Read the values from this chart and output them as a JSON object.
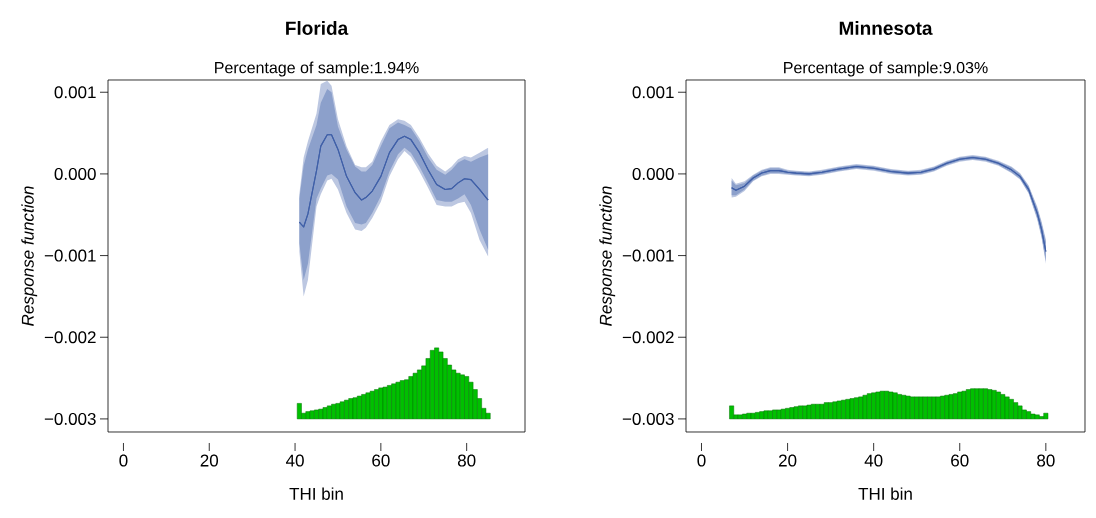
{
  "chart_data": [
    {
      "type": "line",
      "title": "Florida",
      "subtitle": "Percentage of sample:1.94%",
      "xlabel": "THI bin",
      "ylabel": "Response function",
      "xlim": [
        -3.6,
        93.6
      ],
      "ylim": [
        -0.00316,
        0.00115
      ],
      "xticks": [
        0,
        20,
        40,
        60,
        80
      ],
      "yticks": [
        {
          "value": -0.003,
          "label": "−0.003"
        },
        {
          "value": -0.002,
          "label": "−0.002"
        },
        {
          "value": -0.001,
          "label": "−0.001"
        },
        {
          "value": 0,
          "label": "0.000"
        },
        0.001
      ],
      "series": [
        {
          "color": "#4060a8",
          "x": [
            41,
            42,
            43,
            45,
            46,
            47.5,
            48.5,
            50,
            52,
            54,
            55.5,
            56.5,
            58,
            60,
            62,
            64,
            65.5,
            67,
            69,
            71,
            73,
            75,
            76.5,
            78,
            79.5,
            81,
            83,
            85
          ],
          "values": [
            -0.00059,
            -0.00065,
            -0.00049,
            4e-05,
            0.00034,
            0.00048,
            0.00048,
            0.0003,
            -3e-05,
            -0.00023,
            -0.00032,
            -0.00029,
            -0.00021,
            -3e-05,
            0.00026,
            0.00042,
            0.00046,
            0.00042,
            0.00026,
            5e-05,
            -0.00013,
            -0.00019,
            -0.00018,
            -0.00011,
            -6e-05,
            -7e-05,
            -0.00019,
            -0.00032
          ],
          "upper": [
            -0.00025,
            0.0002,
            0.0004,
            0.00074,
            0.0011,
            0.00114,
            0.00108,
            0.00067,
            0.00034,
            0.00011,
            8e-05,
            8e-05,
            0.00015,
            0.0004,
            0.0006,
            0.00067,
            0.00065,
            0.0006,
            0.00044,
            0.00025,
            0.0001,
            3e-05,
            9e-05,
            0.00018,
            0.00022,
            0.0002,
            0.00026,
            0.00032
          ],
          "lower": [
            -0.00095,
            -0.0015,
            -0.0013,
            -0.0004,
            -0.00025,
            -8e-05,
            -6e-05,
            -0.00019,
            -0.00048,
            -0.00068,
            -0.0007,
            -0.00066,
            -0.00054,
            -0.00034,
            -3e-05,
            0.00018,
            0.00028,
            0.00021,
            3e-05,
            -0.00017,
            -0.00038,
            -0.0004,
            -0.0004,
            -0.00036,
            -0.00034,
            -0.00048,
            -0.00081,
            -0.00101
          ]
        },
        {
          "color": "#4060a8",
          "x": [
            41,
            42,
            43,
            45,
            46,
            47.5,
            48.5,
            50,
            52,
            54,
            55.5,
            56.5,
            58,
            60,
            62,
            64,
            65.5,
            67,
            69,
            71,
            73,
            75,
            76.5,
            78,
            79.5,
            81,
            83,
            85
          ],
          "values": [
            -0.00059,
            -0.00065,
            -0.00049,
            4e-05,
            0.00034,
            0.00048,
            0.00048,
            0.0003,
            -3e-05,
            -0.00023,
            -0.00032,
            -0.00029,
            -0.00021,
            -3e-05,
            0.00026,
            0.00042,
            0.00046,
            0.00042,
            0.00026,
            5e-05,
            -0.00013,
            -0.00019,
            -0.00018,
            -0.00011,
            -6e-05,
            -7e-05,
            -0.00019,
            -0.00032
          ],
          "upper": [
            -0.0003,
            0.0001,
            0.0003,
            0.0006,
            0.00087,
            0.00104,
            0.001,
            0.00058,
            0.0003,
            9e-05,
            3e-05,
            3e-05,
            0.00011,
            0.00034,
            0.00056,
            0.00063,
            0.0006,
            0.00056,
            0.0004,
            0.0002,
            5e-05,
            -1e-05,
            5e-05,
            0.00014,
            0.00018,
            0.00015,
            0.0002,
            0.00024
          ],
          "lower": [
            -0.00085,
            -0.0013,
            -0.0011,
            -0.0003,
            -0.00018,
            -2e-05,
            0,
            -7e-05,
            -0.0004,
            -0.0006,
            -0.00062,
            -0.0006,
            -0.00048,
            -0.00027,
            3e-05,
            0.00024,
            0.00032,
            0.00026,
            9e-05,
            -0.00011,
            -0.00032,
            -0.00034,
            -0.00034,
            -0.0003,
            -0.00025,
            -0.00038,
            -0.00068,
            -0.00093
          ]
        },
        {
          "type": "histogram",
          "color": "#00c000",
          "bins": [
            40.5,
            41.5,
            42.5,
            43.5,
            44.5,
            45.5,
            46.5,
            47.5,
            48.5,
            49.5,
            50.5,
            51.5,
            52.5,
            53.5,
            54.5,
            55.5,
            56.5,
            57.5,
            58.5,
            59.5,
            60.5,
            61.5,
            62.5,
            63.5,
            64.5,
            65.5,
            66.5,
            67.5,
            68.5,
            69.5,
            70.5,
            71.5,
            72.5,
            73.5,
            74.5,
            75.5,
            76.5,
            77.5,
            78.5,
            79.5,
            80.5,
            81.5,
            82.5,
            83.5,
            84.5,
            85.5
          ],
          "values": [
            0.00019,
            7e-05,
            9e-05,
            0.0001,
            0.00011,
            0.00012,
            0.00014,
            0.00016,
            0.00018,
            0.00019,
            0.00021,
            0.00023,
            0.00025,
            0.00026,
            0.00028,
            0.0003,
            0.00032,
            0.00034,
            0.00036,
            0.00038,
            0.00039,
            0.00041,
            0.00043,
            0.00045,
            0.00047,
            0.00048,
            0.00052,
            0.00056,
            0.0006,
            0.00065,
            0.00074,
            0.00084,
            0.00087,
            0.00082,
            0.00074,
            0.00066,
            0.0006,
            0.00056,
            0.00054,
            0.00052,
            0.00045,
            0.00036,
            0.00025,
            0.00013,
            7e-05
          ],
          "base": [
            -0.003,
            -0.003,
            -0.003,
            -0.003,
            -0.003,
            -0.003,
            -0.003,
            -0.003,
            -0.003,
            -0.003,
            -0.003,
            -0.003,
            -0.003,
            -0.003,
            -0.003,
            -0.003,
            -0.003,
            -0.003,
            -0.003,
            -0.003,
            -0.003,
            -0.003,
            -0.003,
            -0.003,
            -0.003,
            -0.003,
            -0.003,
            -0.003,
            -0.003,
            -0.003,
            -0.003,
            -0.003,
            -0.003,
            -0.003,
            -0.003,
            -0.003,
            -0.003,
            -0.003,
            -0.003,
            -0.003,
            -0.003,
            -0.003,
            -0.003,
            -0.003,
            -0.003
          ]
        }
      ]
    },
    {
      "type": "line",
      "title": "Minnesota",
      "subtitle": "Percentage of sample:9.03%",
      "xlabel": "THI bin",
      "ylabel": "Response function",
      "xlim": [
        -3.6,
        89.1
      ],
      "ylim": [
        -0.00316,
        0.00115
      ],
      "xticks": [
        0,
        20,
        40,
        60,
        80
      ],
      "yticks": [
        {
          "value": -0.003,
          "label": "−0.003"
        },
        {
          "value": -0.002,
          "label": "−0.002"
        },
        {
          "value": -0.001,
          "label": "−0.001"
        },
        {
          "value": 0,
          "label": "0.000"
        },
        0.001
      ],
      "series": [
        {
          "color": "#4060a8",
          "x": [
            7,
            8,
            10,
            12,
            14,
            16,
            18,
            20,
            22,
            25,
            28,
            32,
            36,
            40,
            44,
            48,
            51,
            54,
            57,
            60,
            63,
            66,
            69,
            72,
            74,
            76,
            78,
            79,
            80
          ],
          "values": [
            -0.00017,
            -0.0002,
            -0.00015,
            -5e-05,
            1e-05,
            4e-05,
            4e-05,
            2e-05,
            1e-05,
            0,
            2e-05,
            6e-05,
            9e-05,
            7e-05,
            3e-05,
            1e-05,
            2e-05,
            6e-05,
            0.00013,
            0.00018,
            0.0002,
            0.00018,
            0.00013,
            5e-05,
            -3e-05,
            -0.00019,
            -0.00048,
            -0.00068,
            -0.00095
          ],
          "upper": [
            -5e-05,
            -0.00012,
            -9e-05,
            -1e-05,
            5e-05,
            8e-05,
            8e-05,
            5e-05,
            4e-05,
            3e-05,
            5e-05,
            9e-05,
            0.00012,
            0.0001,
            6e-05,
            4e-05,
            5e-05,
            9e-05,
            0.00016,
            0.00021,
            0.00023,
            0.00021,
            0.00016,
            9e-05,
            1e-05,
            -0.00014,
            -0.0004,
            -0.00058,
            -0.0008
          ],
          "lower": [
            -0.00029,
            -0.00028,
            -0.00021,
            -9e-05,
            -3e-05,
            0,
            0,
            -1e-05,
            -2e-05,
            -3e-05,
            -1e-05,
            3e-05,
            6e-05,
            4e-05,
            0,
            -2e-05,
            -1e-05,
            3e-05,
            0.0001,
            0.00015,
            0.00017,
            0.00015,
            0.0001,
            1e-05,
            -7e-05,
            -0.00024,
            -0.00056,
            -0.00078,
            -0.0011
          ]
        },
        {
          "color": "#4060a8",
          "x": [
            7,
            8,
            10,
            12,
            14,
            16,
            18,
            20,
            22,
            25,
            28,
            32,
            36,
            40,
            44,
            48,
            51,
            54,
            57,
            60,
            63,
            66,
            69,
            72,
            74,
            76,
            78,
            79,
            80
          ],
          "values": [
            -0.00017,
            -0.0002,
            -0.00015,
            -5e-05,
            1e-05,
            4e-05,
            4e-05,
            2e-05,
            1e-05,
            0,
            2e-05,
            6e-05,
            9e-05,
            7e-05,
            3e-05,
            1e-05,
            2e-05,
            6e-05,
            0.00013,
            0.00018,
            0.0002,
            0.00018,
            0.00013,
            5e-05,
            -3e-05,
            -0.00019,
            -0.00048,
            -0.00068,
            -0.00095
          ],
          "upper": [
            -8e-05,
            -0.00014,
            -0.00011,
            -2e-05,
            4e-05,
            7e-05,
            7e-05,
            4e-05,
            3e-05,
            2e-05,
            4e-05,
            8e-05,
            0.00011,
            9e-05,
            5e-05,
            3e-05,
            4e-05,
            8e-05,
            0.00015,
            0.0002,
            0.00022,
            0.0002,
            0.00015,
            8e-05,
            0,
            -0.00015,
            -0.00042,
            -0.0006,
            -0.00083
          ],
          "lower": [
            -0.00026,
            -0.00026,
            -0.00019,
            -8e-05,
            -2e-05,
            1e-05,
            1e-05,
            0,
            -1e-05,
            -2e-05,
            0,
            4e-05,
            7e-05,
            5e-05,
            1e-05,
            -1e-05,
            0,
            4e-05,
            0.00011,
            0.00016,
            0.00018,
            0.00016,
            0.00011,
            2e-05,
            -6e-05,
            -0.00023,
            -0.00054,
            -0.00076,
            -0.00107
          ]
        },
        {
          "type": "histogram",
          "color": "#00c000",
          "bins": [
            6.5,
            7.5,
            8.5,
            9.5,
            10.5,
            11.5,
            12.5,
            13.5,
            14.5,
            15.5,
            16.5,
            17.5,
            18.5,
            19.5,
            20.5,
            21.5,
            22.5,
            23.5,
            24.5,
            25.5,
            26.5,
            27.5,
            28.5,
            29.5,
            30.5,
            31.5,
            32.5,
            33.5,
            34.5,
            35.5,
            36.5,
            37.5,
            38.5,
            39.5,
            40.5,
            41.5,
            42.5,
            43.5,
            44.5,
            45.5,
            46.5,
            47.5,
            48.5,
            49.5,
            50.5,
            51.5,
            52.5,
            53.5,
            54.5,
            55.5,
            56.5,
            57.5,
            58.5,
            59.5,
            60.5,
            61.5,
            62.5,
            63.5,
            64.5,
            65.5,
            66.5,
            67.5,
            68.5,
            69.5,
            70.5,
            71.5,
            72.5,
            73.5,
            74.5,
            75.5,
            76.5,
            77.5,
            78.5,
            79.5,
            80.5
          ],
          "values": [
            0.00016,
            5e-05,
            5e-05,
            6e-05,
            7e-05,
            7e-05,
            8e-05,
            9e-05,
            0.0001,
            0.0001,
            0.00011,
            0.00011,
            0.00012,
            0.00013,
            0.00014,
            0.00015,
            0.00016,
            0.00016,
            0.00017,
            0.00018,
            0.00018,
            0.00018,
            0.0002,
            0.0002,
            0.00021,
            0.00022,
            0.00023,
            0.00024,
            0.00025,
            0.00026,
            0.00027,
            0.00029,
            0.00031,
            0.00032,
            0.00033,
            0.00034,
            0.00034,
            0.00033,
            0.00032,
            0.0003,
            0.00029,
            0.00028,
            0.00027,
            0.00027,
            0.00027,
            0.00027,
            0.00027,
            0.00027,
            0.00027,
            0.00028,
            0.00029,
            0.0003,
            0.00031,
            0.00033,
            0.00034,
            0.00036,
            0.00037,
            0.00037,
            0.00037,
            0.00037,
            0.00036,
            0.00035,
            0.00033,
            0.0003,
            0.00027,
            0.00024,
            0.0002,
            0.00016,
            0.00011,
            9e-05,
            6e-05,
            5e-05,
            3e-05,
            7e-05
          ],
          "base": [
            -0.003,
            -0.003,
            -0.003,
            -0.003,
            -0.003,
            -0.003,
            -0.003,
            -0.003,
            -0.003,
            -0.003,
            -0.003,
            -0.003,
            -0.003,
            -0.003,
            -0.003,
            -0.003,
            -0.003,
            -0.003,
            -0.003,
            -0.003,
            -0.003,
            -0.003,
            -0.003,
            -0.003,
            -0.003,
            -0.003,
            -0.003,
            -0.003,
            -0.003,
            -0.003,
            -0.003,
            -0.003,
            -0.003,
            -0.003,
            -0.003,
            -0.003,
            -0.003,
            -0.003,
            -0.003,
            -0.003,
            -0.003,
            -0.003,
            -0.003,
            -0.003,
            -0.003,
            -0.003,
            -0.003,
            -0.003,
            -0.003,
            -0.003,
            -0.003,
            -0.003,
            -0.003,
            -0.003,
            -0.003,
            -0.003,
            -0.003,
            -0.003,
            -0.003,
            -0.003,
            -0.003,
            -0.003,
            -0.003,
            -0.003,
            -0.003,
            -0.003,
            -0.003,
            -0.003,
            -0.003,
            -0.003,
            -0.003,
            -0.003,
            -0.003,
            -0.003
          ]
        }
      ]
    }
  ]
}
